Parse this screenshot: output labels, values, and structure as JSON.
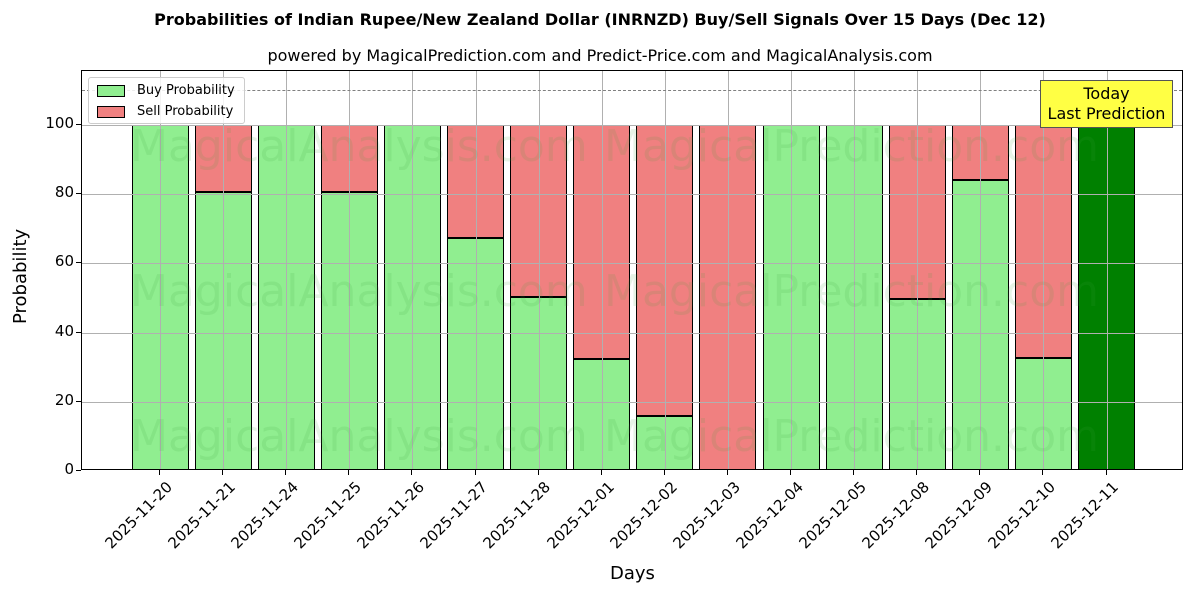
{
  "chart_data": {
    "type": "bar",
    "stacked": true,
    "title": "Probabilities of Indian Rupee/New Zealand Dollar (INRNZD) Buy/Sell Signals Over 15 Days (Dec 12)",
    "subtitle": "powered by MagicalPrediction.com and Predict-Price.com and MagicalAnalysis.com",
    "xlabel": "Days",
    "ylabel": "Probability",
    "ylim": [
      0,
      115
    ],
    "yticks": [
      0,
      20,
      40,
      60,
      80,
      100
    ],
    "grid": true,
    "reference_line": 110,
    "legend_position": "upper left",
    "categories": [
      "2025-11-20",
      "2025-11-21",
      "2025-11-24",
      "2025-11-25",
      "2025-11-26",
      "2025-11-27",
      "2025-11-28",
      "2025-12-01",
      "2025-12-02",
      "2025-12-03",
      "2025-12-04",
      "2025-12-05",
      "2025-12-08",
      "2025-12-09",
      "2025-12-10",
      "2025-12-11"
    ],
    "series": [
      {
        "name": "Buy Probability",
        "color": "#90ee90",
        "values": [
          100,
          80.6,
          100,
          80.6,
          100,
          67.3,
          50.3,
          32.4,
          15.9,
          0,
          100,
          100,
          49.7,
          84.1,
          32.7,
          100
        ]
      },
      {
        "name": "Sell Probability",
        "color": "#f08080",
        "values": [
          0,
          19.4,
          0,
          19.4,
          0,
          32.7,
          49.7,
          67.6,
          84.1,
          100,
          0,
          0,
          50.3,
          15.9,
          67.3,
          0
        ]
      }
    ],
    "highlight": {
      "index": 15,
      "color": "#008000",
      "annotation": [
        "Today",
        "Last Prediction"
      ]
    }
  },
  "legend": {
    "buy_label": "Buy Probability",
    "sell_label": "Sell Probability"
  },
  "annotation": {
    "line1": "Today",
    "line2": "Last Prediction"
  },
  "watermarks": [
    "MagicalAnalysis.com",
    "MagicalPrediction.com"
  ]
}
